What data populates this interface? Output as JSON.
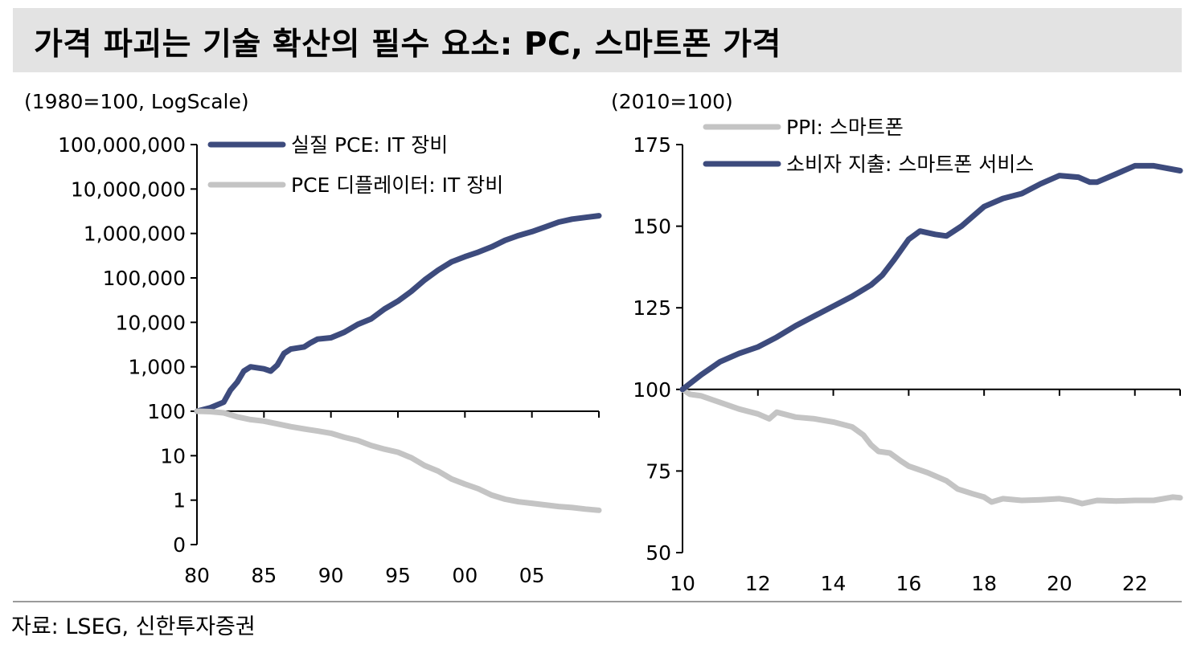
{
  "header": {
    "title": "가격 파괴는 기술 확산의 필수 요소: PC, 스마트폰 가격"
  },
  "source": "자료: LSEG, 신한투자증권",
  "colors": {
    "navy": "#3d4b7d",
    "gray": "#c4c4c4",
    "title_bg": "#e3e3e3"
  },
  "chart_data": [
    {
      "type": "line",
      "unit_label": "(1980=100, LogScale)",
      "log_scale": true,
      "x_ticks": [
        {
          "v": 1980,
          "label": "80"
        },
        {
          "v": 1985,
          "label": "85"
        },
        {
          "v": 1990,
          "label": "90"
        },
        {
          "v": 1995,
          "label": "95"
        },
        {
          "v": 2000,
          "label": "00"
        },
        {
          "v": 2005,
          "label": "05"
        }
      ],
      "xlim": [
        1980,
        2010
      ],
      "y_ticks": [
        {
          "v": 0.1,
          "label": "0"
        },
        {
          "v": 1,
          "label": "1"
        },
        {
          "v": 10,
          "label": "10"
        },
        {
          "v": 100,
          "label": "100"
        },
        {
          "v": 1000,
          "label": "1,000"
        },
        {
          "v": 10000,
          "label": "10,000"
        },
        {
          "v": 100000,
          "label": "100,000"
        },
        {
          "v": 1000000,
          "label": "1,000,000"
        },
        {
          "v": 10000000,
          "label": "10,000,000"
        },
        {
          "v": 100000000,
          "label": "100,000,000"
        }
      ],
      "ylim": [
        0.1,
        100000000
      ],
      "legend_position": "top-left",
      "series": [
        {
          "name": "실질 PCE: IT 장비",
          "color": "#3d4b7d",
          "points": [
            [
              1980,
              100
            ],
            [
              1981,
              120
            ],
            [
              1982,
              160
            ],
            [
              1982.5,
              300
            ],
            [
              1983,
              450
            ],
            [
              1983.5,
              800
            ],
            [
              1984,
              1000
            ],
            [
              1985,
              900
            ],
            [
              1985.5,
              800
            ],
            [
              1986,
              1100
            ],
            [
              1986.5,
              2000
            ],
            [
              1987,
              2500
            ],
            [
              1988,
              2800
            ],
            [
              1988.5,
              3500
            ],
            [
              1989,
              4200
            ],
            [
              1990,
              4500
            ],
            [
              1991,
              6000
            ],
            [
              1992,
              9000
            ],
            [
              1993,
              12000
            ],
            [
              1994,
              20000
            ],
            [
              1995,
              30000
            ],
            [
              1996,
              50000
            ],
            [
              1997,
              90000
            ],
            [
              1998,
              150000
            ],
            [
              1999,
              230000
            ],
            [
              2000,
              300000
            ],
            [
              2001,
              380000
            ],
            [
              2002,
              500000
            ],
            [
              2003,
              700000
            ],
            [
              2004,
              900000
            ],
            [
              2005,
              1100000
            ],
            [
              2006,
              1400000
            ],
            [
              2007,
              1800000
            ],
            [
              2008,
              2100000
            ],
            [
              2009,
              2300000
            ],
            [
              2010,
              2500000
            ]
          ]
        },
        {
          "name": "PCE 디플레이터: IT 장비",
          "color": "#c4c4c4",
          "points": [
            [
              1980,
              100
            ],
            [
              1981,
              98
            ],
            [
              1982,
              92
            ],
            [
              1983,
              75
            ],
            [
              1984,
              65
            ],
            [
              1985,
              60
            ],
            [
              1986,
              52
            ],
            [
              1987,
              45
            ],
            [
              1988,
              40
            ],
            [
              1989,
              36
            ],
            [
              1990,
              32
            ],
            [
              1991,
              26
            ],
            [
              1992,
              22
            ],
            [
              1993,
              17
            ],
            [
              1994,
              14
            ],
            [
              1995,
              12
            ],
            [
              1996,
              9
            ],
            [
              1997,
              6
            ],
            [
              1998,
              4.5
            ],
            [
              1999,
              3
            ],
            [
              2000,
              2.3
            ],
            [
              2001,
              1.8
            ],
            [
              2002,
              1.3
            ],
            [
              2003,
              1.05
            ],
            [
              2004,
              0.92
            ],
            [
              2005,
              0.85
            ],
            [
              2006,
              0.78
            ],
            [
              2007,
              0.72
            ],
            [
              2008,
              0.68
            ],
            [
              2009,
              0.63
            ],
            [
              2010,
              0.59
            ]
          ]
        }
      ]
    },
    {
      "type": "line",
      "unit_label": "(2010=100)",
      "x_ticks": [
        {
          "v": 2010,
          "label": "10"
        },
        {
          "v": 2012,
          "label": "12"
        },
        {
          "v": 2014,
          "label": "14"
        },
        {
          "v": 2016,
          "label": "16"
        },
        {
          "v": 2018,
          "label": "18"
        },
        {
          "v": 2020,
          "label": "20"
        },
        {
          "v": 2022,
          "label": "22"
        }
      ],
      "xlim": [
        2010,
        2023.2
      ],
      "y_ticks": [
        {
          "v": 50,
          "label": "50"
        },
        {
          "v": 75,
          "label": "75"
        },
        {
          "v": 100,
          "label": "100"
        },
        {
          "v": 125,
          "label": "125"
        },
        {
          "v": 150,
          "label": "150"
        },
        {
          "v": 175,
          "label": "175"
        }
      ],
      "ylim": [
        50,
        175
      ],
      "legend_position": "top-left",
      "series": [
        {
          "name": "PPI: 스마트폰",
          "color": "#c4c4c4",
          "points": [
            [
              2010,
              100
            ],
            [
              2010.2,
              98.5
            ],
            [
              2010.5,
              98
            ],
            [
              2011,
              96
            ],
            [
              2011.5,
              94
            ],
            [
              2012,
              92.5
            ],
            [
              2012.3,
              91
            ],
            [
              2012.5,
              93
            ],
            [
              2013,
              91.5
            ],
            [
              2013.5,
              91
            ],
            [
              2014,
              90
            ],
            [
              2014.5,
              88.5
            ],
            [
              2014.8,
              86
            ],
            [
              2015,
              83
            ],
            [
              2015.2,
              81
            ],
            [
              2015.5,
              80.5
            ],
            [
              2015.8,
              78
            ],
            [
              2016,
              76.5
            ],
            [
              2016.5,
              74.5
            ],
            [
              2017,
              72
            ],
            [
              2017.3,
              69.5
            ],
            [
              2017.7,
              68
            ],
            [
              2018,
              67
            ],
            [
              2018.2,
              65.5
            ],
            [
              2018.5,
              66.5
            ],
            [
              2019,
              66
            ],
            [
              2019.5,
              66.2
            ],
            [
              2020,
              66.5
            ],
            [
              2020.3,
              66
            ],
            [
              2020.6,
              65
            ],
            [
              2021,
              66
            ],
            [
              2021.5,
              65.8
            ],
            [
              2022,
              66
            ],
            [
              2022.5,
              66
            ],
            [
              2023,
              67
            ],
            [
              2023.2,
              66.8
            ]
          ]
        },
        {
          "name": "소비자 지출: 스마트폰 서비스",
          "color": "#3d4b7d",
          "points": [
            [
              2010,
              100
            ],
            [
              2010.5,
              104.5
            ],
            [
              2011,
              108.5
            ],
            [
              2011.5,
              111
            ],
            [
              2012,
              113
            ],
            [
              2012.5,
              116
            ],
            [
              2013,
              119.5
            ],
            [
              2013.5,
              122.5
            ],
            [
              2014,
              125.5
            ],
            [
              2014.5,
              128.5
            ],
            [
              2015,
              132
            ],
            [
              2015.3,
              135
            ],
            [
              2015.6,
              139.5
            ],
            [
              2016,
              146
            ],
            [
              2016.3,
              148.5
            ],
            [
              2016.7,
              147.5
            ],
            [
              2017,
              147
            ],
            [
              2017.4,
              150
            ],
            [
              2017.8,
              154
            ],
            [
              2018,
              156
            ],
            [
              2018.5,
              158.5
            ],
            [
              2019,
              160
            ],
            [
              2019.5,
              163
            ],
            [
              2020,
              165.5
            ],
            [
              2020.5,
              165
            ],
            [
              2020.8,
              163.5
            ],
            [
              2021,
              163.5
            ],
            [
              2021.5,
              166
            ],
            [
              2022,
              168.5
            ],
            [
              2022.5,
              168.5
            ],
            [
              2023.2,
              167
            ]
          ]
        }
      ]
    }
  ]
}
